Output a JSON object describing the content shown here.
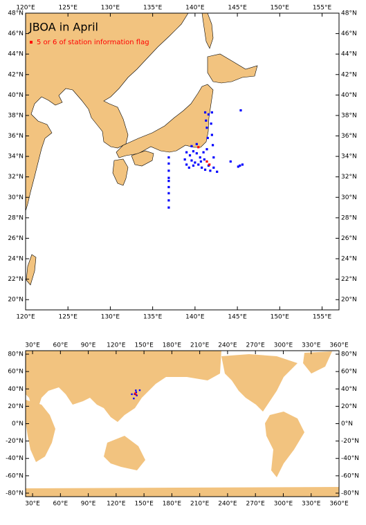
{
  "chart_data": [
    {
      "type": "map",
      "title": "JBOA in April",
      "xlim": [
        120,
        157
      ],
      "ylim": [
        19,
        48
      ],
      "xticks": [
        {
          "value": 120,
          "label": "120°E"
        },
        {
          "value": 125,
          "label": "125°E"
        },
        {
          "value": 130,
          "label": "130°E"
        },
        {
          "value": 135,
          "label": "135°E"
        },
        {
          "value": 140,
          "label": "140°E"
        },
        {
          "value": 145,
          "label": "145°E"
        },
        {
          "value": 150,
          "label": "150°E"
        },
        {
          "value": 155,
          "label": "155°E"
        }
      ],
      "yticks": [
        {
          "value": 20,
          "label": "20°N"
        },
        {
          "value": 22,
          "label": "22°N"
        },
        {
          "value": 24,
          "label": "24°N"
        },
        {
          "value": 26,
          "label": "26°N"
        },
        {
          "value": 28,
          "label": "28°N"
        },
        {
          "value": 30,
          "label": "30°N"
        },
        {
          "value": 32,
          "label": "32°N"
        },
        {
          "value": 34,
          "label": "34°N"
        },
        {
          "value": 36,
          "label": "36°N"
        },
        {
          "value": 38,
          "label": "38°N"
        },
        {
          "value": 40,
          "label": "40°N"
        },
        {
          "value": 42,
          "label": "42°N"
        },
        {
          "value": 44,
          "label": "44°N"
        },
        {
          "value": 46,
          "label": "46°N"
        },
        {
          "value": 48,
          "label": "48°N"
        }
      ],
      "series": [
        {
          "color": "#0000ff",
          "x": [
            136.9,
            136.9,
            136.9,
            136.9,
            136.9,
            136.9,
            136.9,
            136.9,
            136.9,
            141.2,
            141.6,
            142.0,
            141.3,
            141.9,
            141.4,
            142.0,
            141.5,
            145.4,
            139.0,
            139.4,
            139.8,
            140.2,
            140.6,
            141.0,
            139.6,
            140.0,
            140.4,
            140.7,
            141.1,
            139.0,
            139.3,
            139.8,
            140.8,
            141.2,
            141.6,
            141.8,
            138.8,
            142.2,
            142.1,
            141.4,
            139.6,
            140.2,
            144.2,
            145.3,
            145.6,
            145.1,
            142.2,
            142.6
          ],
          "y": [
            33.9,
            33.3,
            32.6,
            31.9,
            31.6,
            31.0,
            30.4,
            29.7,
            29.0,
            38.3,
            38.1,
            38.3,
            37.5,
            37.2,
            36.8,
            36.1,
            35.8,
            38.5,
            34.4,
            34.1,
            34.5,
            34.3,
            33.9,
            34.4,
            33.6,
            33.4,
            33.2,
            33.5,
            33.7,
            33.2,
            32.9,
            33.1,
            32.9,
            32.7,
            33.1,
            32.6,
            33.7,
            33.9,
            35.1,
            34.7,
            35.0,
            35.2,
            33.5,
            33.1,
            33.2,
            33.0,
            32.9,
            32.5
          ]
        },
        {
          "name": "5 or 6 of station information flag",
          "color": "#ff0000",
          "x": [
            140.4,
            141.4,
            141.7
          ],
          "y": [
            34.9,
            33.5,
            33.2
          ]
        }
      ]
    },
    {
      "type": "map",
      "xlim": [
        22.5,
        360
      ],
      "ylim": [
        -84,
        84
      ],
      "xticks": [
        {
          "value": 30,
          "label": "30°E"
        },
        {
          "value": 60,
          "label": "60°E"
        },
        {
          "value": 90,
          "label": "90°E"
        },
        {
          "value": 120,
          "label": "120°E"
        },
        {
          "value": 150,
          "label": "150°E"
        },
        {
          "value": 180,
          "label": "180°E"
        },
        {
          "value": 210,
          "label": "210°E"
        },
        {
          "value": 240,
          "label": "240°E"
        },
        {
          "value": 270,
          "label": "270°E"
        },
        {
          "value": 300,
          "label": "300°E"
        },
        {
          "value": 330,
          "label": "330°E"
        },
        {
          "value": 360,
          "label": "360°E"
        }
      ],
      "yticks": [
        {
          "value": 80,
          "label": "80°N"
        },
        {
          "value": 60,
          "label": "60°N"
        },
        {
          "value": 40,
          "label": "40°N"
        },
        {
          "value": 20,
          "label": "20°N"
        },
        {
          "value": 0,
          "label": "0°N"
        },
        {
          "value": -20,
          "label": "-20°N"
        },
        {
          "value": -40,
          "label": "-40°N"
        },
        {
          "value": -60,
          "label": "-60°N"
        },
        {
          "value": -80,
          "label": "-80°N"
        }
      ],
      "series": [
        {
          "color": "#0000ff",
          "x": [
            136.9,
            141.2,
            141.6,
            140.0,
            139.0,
            145.4,
            142.2
          ],
          "y": [
            33.9,
            38.3,
            36.1,
            34.0,
            29.0,
            38.5,
            32.5
          ]
        },
        {
          "color": "#ff0000",
          "x": [
            140.4,
            141.4
          ],
          "y": [
            34.9,
            33.5
          ]
        }
      ]
    }
  ]
}
